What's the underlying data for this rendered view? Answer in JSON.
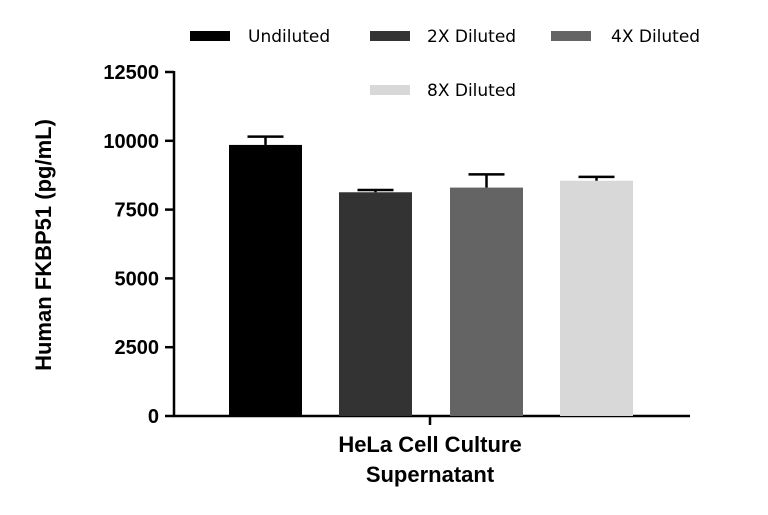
{
  "chart_data": {
    "type": "bar",
    "title": "",
    "xlabel_lines": [
      "HeLa Cell Culture",
      "Supernatant"
    ],
    "ylabel": "Human FKBP51 (pg/mL)",
    "ylim": [
      0,
      12500
    ],
    "yticks": [
      0,
      2500,
      5000,
      7500,
      10000,
      12500
    ],
    "category": "HeLa Cell Culture Supernatant",
    "legend_position": "top",
    "series": [
      {
        "name": "Undiluted",
        "value": 9850,
        "error": 300,
        "color": "#000000"
      },
      {
        "name": "2X Diluted",
        "value": 8130,
        "error": 80,
        "color": "#333333"
      },
      {
        "name": "4X Diluted",
        "value": 8300,
        "error": 480,
        "color": "#646464"
      },
      {
        "name": "8X Diluted",
        "value": 8550,
        "error": 140,
        "color": "#d8d8d8"
      }
    ]
  }
}
